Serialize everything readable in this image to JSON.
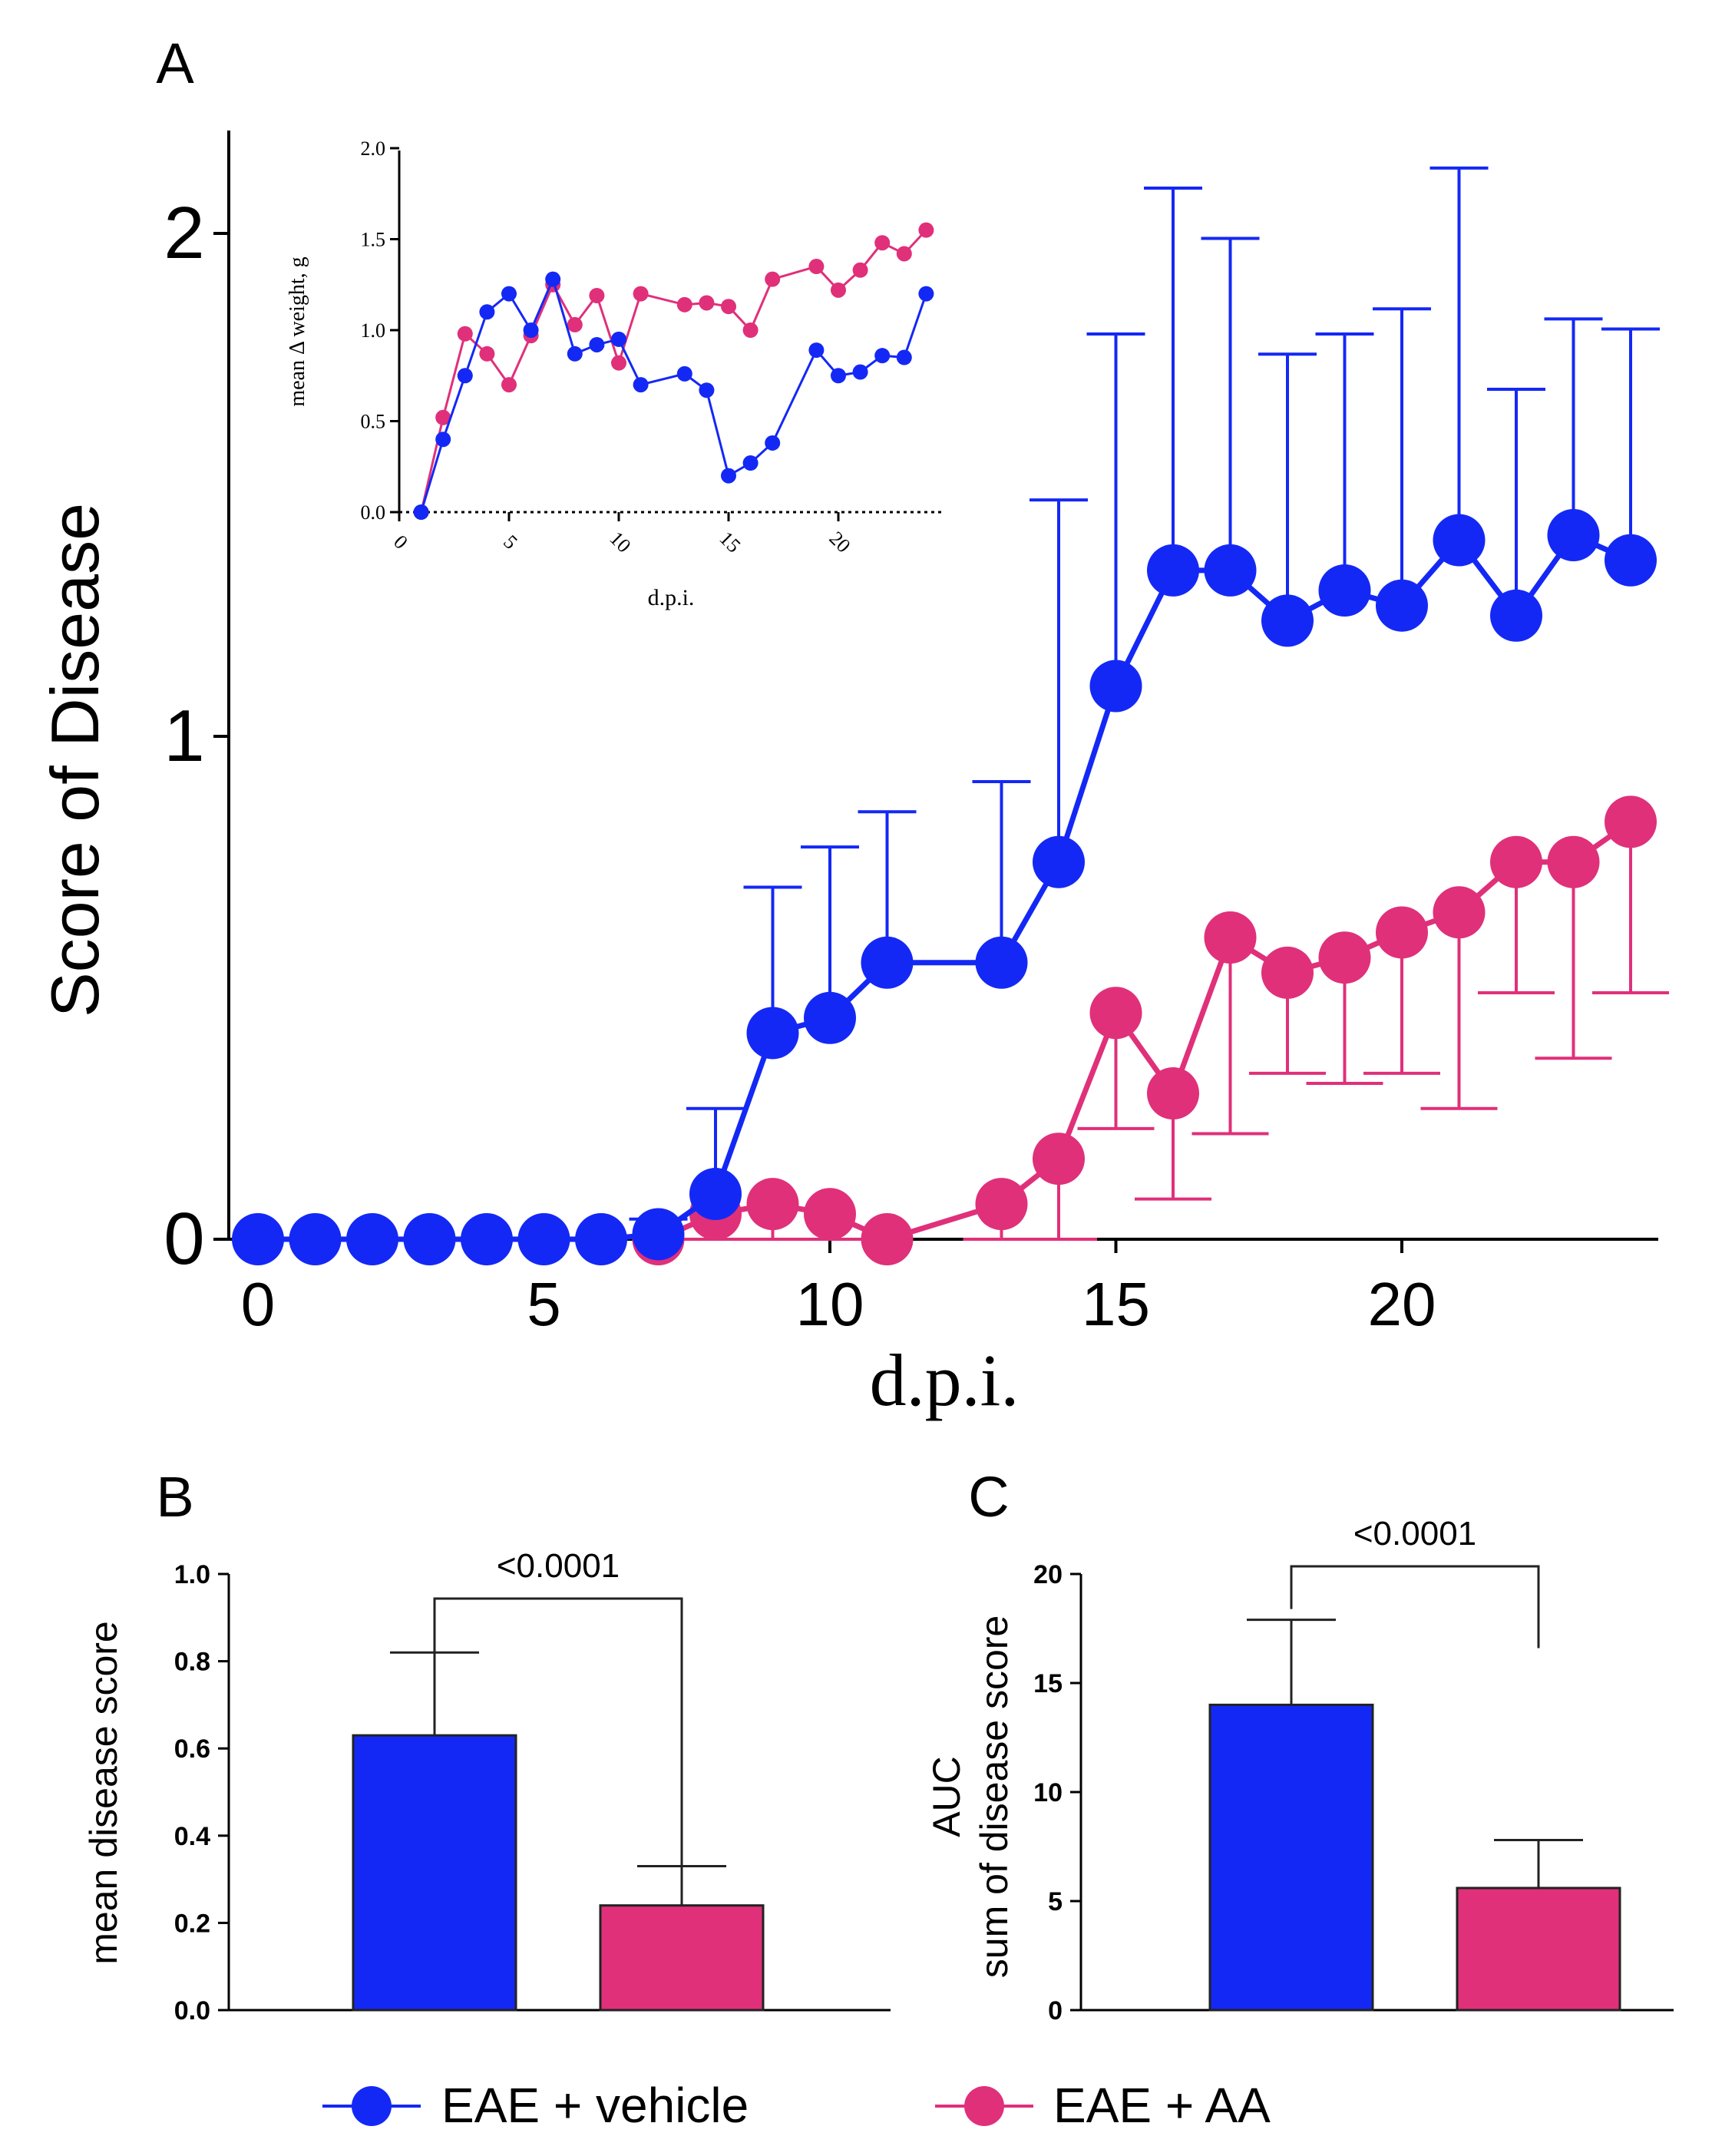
{
  "colors": {
    "vehicle": "#1428f5",
    "aa": "#e0307a",
    "axis": "#000000"
  },
  "legend": [
    {
      "label": "EAE + vehicle",
      "color": "#1428f5"
    },
    {
      "label": "EAE + AA",
      "color": "#e0307a"
    }
  ],
  "chart_data": [
    {
      "panel": "A",
      "type": "line",
      "xlabel": "d.p.i.",
      "ylabel": "Score of Disease",
      "xlim": [
        0,
        24.5
      ],
      "ylim": [
        0,
        2.2
      ],
      "xticks": [
        "0",
        "5",
        "10",
        "15",
        "20"
      ],
      "yticks": [
        "0",
        "1",
        "2"
      ],
      "series": [
        {
          "name": "EAE + vehicle",
          "color": "#1428f5",
          "x": [
            0,
            1,
            2,
            3,
            4,
            5,
            6,
            7,
            8,
            9,
            10,
            11,
            13,
            14,
            15,
            16,
            17,
            18,
            19,
            20,
            21,
            22,
            23,
            24
          ],
          "values": [
            0,
            0,
            0,
            0,
            0,
            0,
            0,
            0.01,
            0.09,
            0.41,
            0.44,
            0.55,
            0.55,
            0.75,
            1.1,
            1.33,
            1.33,
            1.23,
            1.29,
            1.26,
            1.39,
            1.24,
            1.4,
            1.35
          ],
          "error_upper": [
            0,
            0,
            0,
            0,
            0,
            0,
            0,
            0.04,
            0.26,
            0.7,
            0.78,
            0.85,
            0.91,
            1.47,
            1.8,
            2.09,
            1.99,
            1.76,
            1.8,
            1.85,
            2.13,
            1.69,
            1.83,
            1.81
          ]
        },
        {
          "name": "EAE + AA",
          "color": "#e0307a",
          "x": [
            7,
            8,
            9,
            10,
            11,
            13,
            14,
            15,
            16,
            17,
            18,
            19,
            20,
            21,
            22,
            23,
            24
          ],
          "values": [
            0,
            0.05,
            0.07,
            0.05,
            0,
            0.07,
            0.16,
            0.45,
            0.29,
            0.6,
            0.53,
            0.56,
            0.61,
            0.65,
            0.75,
            0.75,
            0.83
          ],
          "error_lower": [
            0,
            0,
            0,
            0,
            0,
            0,
            0,
            0.22,
            0.08,
            0.21,
            0.33,
            0.31,
            0.33,
            0.26,
            0.49,
            0.36,
            0.49
          ]
        }
      ]
    },
    {
      "panel": "A-inset",
      "type": "line",
      "xlabel": "d.p.i.",
      "ylabel": "mean Δ weight, g",
      "xlim": [
        0,
        24
      ],
      "ylim": [
        0,
        2.0
      ],
      "xticks": [
        "0",
        "5",
        "10",
        "15",
        "20"
      ],
      "yticks": [
        "0.0",
        "0.5",
        "1.0",
        "1.5",
        "2.0"
      ],
      "series": [
        {
          "name": "EAE + vehicle",
          "color": "#1428f5",
          "x": [
            1,
            2,
            3,
            4,
            5,
            6,
            7,
            8,
            9,
            10,
            11,
            13,
            14,
            15,
            16,
            17,
            19,
            20,
            21,
            22,
            23,
            24
          ],
          "values": [
            0,
            0.4,
            0.75,
            1.1,
            1.2,
            1.0,
            1.28,
            0.87,
            0.92,
            0.95,
            0.7,
            0.76,
            0.67,
            0.2,
            0.27,
            0.38,
            0.89,
            0.75,
            0.77,
            0.86,
            0.85,
            1.2
          ]
        },
        {
          "name": "EAE + AA",
          "color": "#e0307a",
          "x": [
            1,
            2,
            3,
            4,
            5,
            6,
            7,
            8,
            9,
            10,
            11,
            13,
            14,
            15,
            16,
            17,
            19,
            20,
            21,
            22,
            23,
            24
          ],
          "values": [
            0,
            0.52,
            0.98,
            0.87,
            0.7,
            0.97,
            1.25,
            1.03,
            1.19,
            0.82,
            1.2,
            1.14,
            1.15,
            1.13,
            1.0,
            1.28,
            1.35,
            1.22,
            1.33,
            1.48,
            1.42,
            1.55
          ]
        }
      ]
    },
    {
      "panel": "B",
      "type": "bar",
      "ylabel": "mean disease score",
      "ylim": [
        0,
        1.0
      ],
      "yticks": [
        "0.0",
        "0.2",
        "0.4",
        "0.6",
        "0.8",
        "1.0"
      ],
      "categories": [
        "EAE + vehicle",
        "EAE + AA"
      ],
      "values": [
        0.63,
        0.24
      ],
      "errors": [
        0.19,
        0.09
      ],
      "significance": "<0.0001"
    },
    {
      "panel": "C",
      "type": "bar",
      "ylabel_line1": "AUC",
      "ylabel_line2": "sum of disease score",
      "ylim": [
        0,
        20
      ],
      "yticks": [
        "0",
        "5",
        "10",
        "15",
        "20"
      ],
      "categories": [
        "EAE + vehicle",
        "EAE + AA"
      ],
      "values": [
        14.0,
        5.6
      ],
      "errors": [
        3.9,
        2.2
      ],
      "significance": "<0.0001"
    }
  ]
}
